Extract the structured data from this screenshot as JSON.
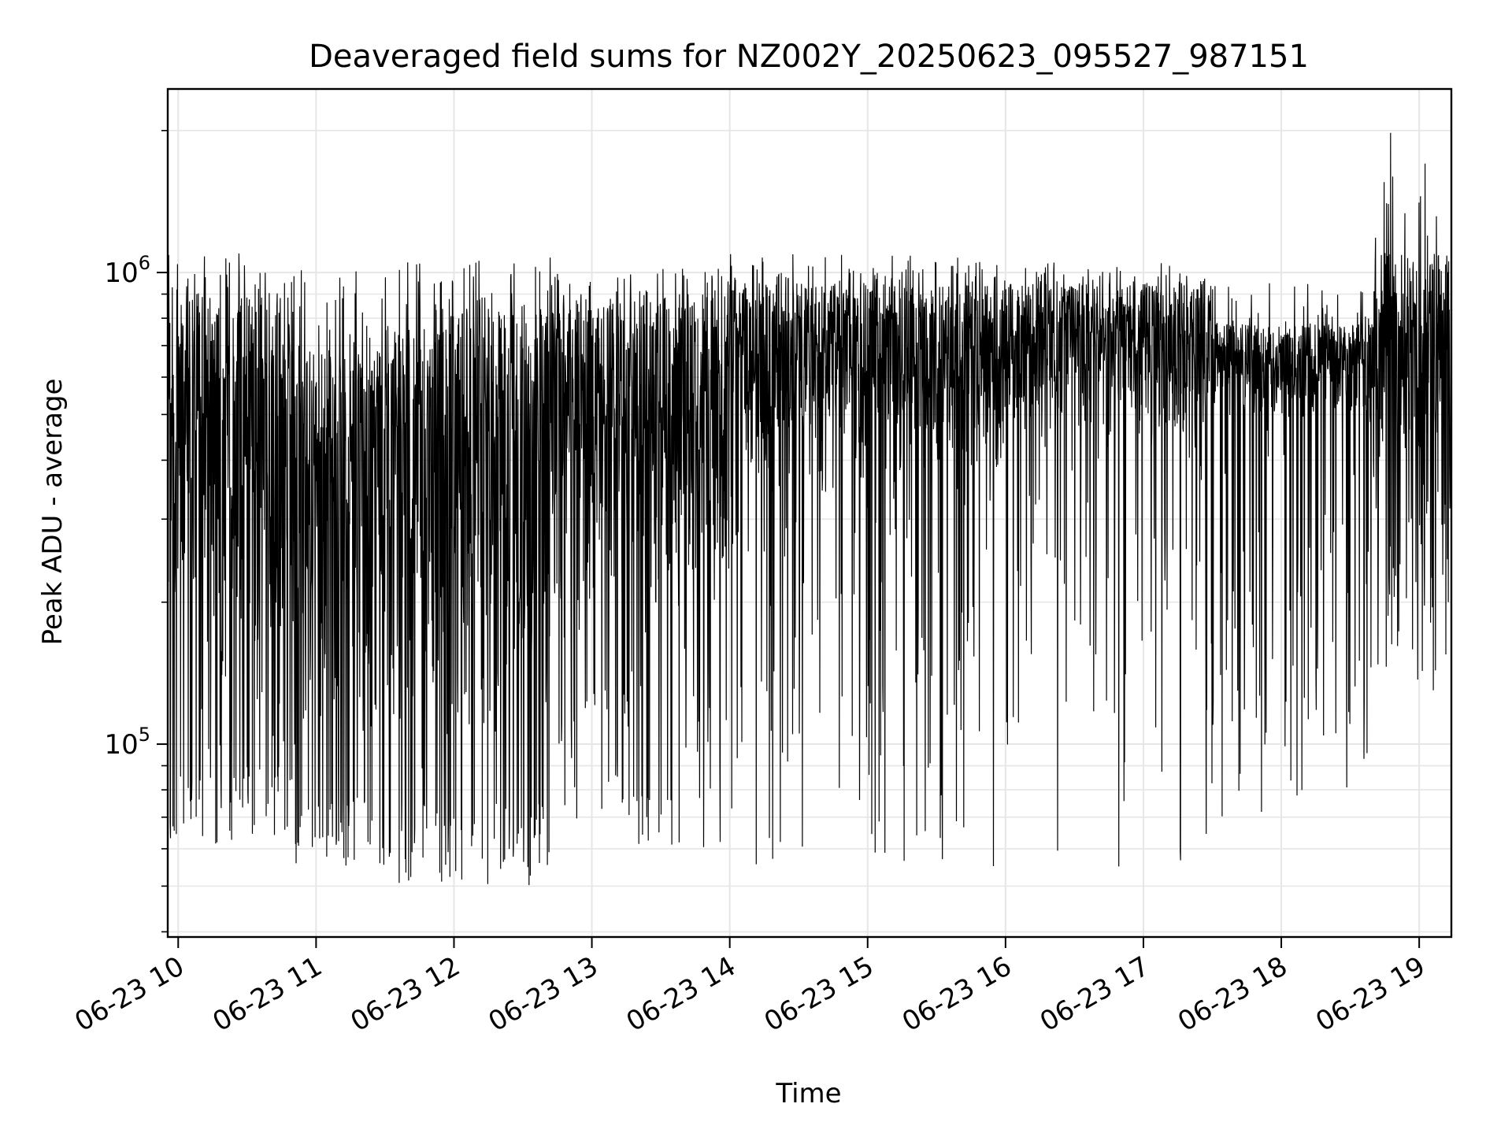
{
  "chart_data": {
    "type": "line",
    "title": "Deaveraged field sums for NZ002Y_20250623_095527_987151",
    "xlabel": "Time",
    "ylabel": "Peak ADU - average",
    "yscale": "log",
    "grid": true,
    "legend": "none",
    "colors": {
      "line": "#000000",
      "grid": "#e6e6e6",
      "axes": "#000000",
      "background": "#ffffff"
    },
    "xlim": [
      "2025-06-23 09:55:27",
      "2025-06-23 19:14:00"
    ],
    "ylim": [
      39000,
      2450000
    ],
    "x_ticks": [
      {
        "value": "2025-06-23 10:00:00",
        "label": "06-23 10"
      },
      {
        "value": "2025-06-23 11:00:00",
        "label": "06-23 11"
      },
      {
        "value": "2025-06-23 12:00:00",
        "label": "06-23 12"
      },
      {
        "value": "2025-06-23 13:00:00",
        "label": "06-23 13"
      },
      {
        "value": "2025-06-23 14:00:00",
        "label": "06-23 14"
      },
      {
        "value": "2025-06-23 15:00:00",
        "label": "06-23 15"
      },
      {
        "value": "2025-06-23 16:00:00",
        "label": "06-23 16"
      },
      {
        "value": "2025-06-23 17:00:00",
        "label": "06-23 17"
      },
      {
        "value": "2025-06-23 18:00:00",
        "label": "06-23 18"
      },
      {
        "value": "2025-06-23 19:00:00",
        "label": "06-23 19"
      }
    ],
    "y_ticks": [
      {
        "value": 100000,
        "base": "10",
        "exp": "5"
      },
      {
        "value": 1000000,
        "base": "10",
        "exp": "6"
      }
    ],
    "y_minor_ticks": [
      40000,
      50000,
      60000,
      70000,
      80000,
      90000,
      200000,
      300000,
      400000,
      500000,
      600000,
      700000,
      800000,
      900000,
      2000000
    ],
    "series_envelope": {
      "description_of_values": "approximate per-segment range of the dense time series (lower trough level, typical lower, typical upper, peak)",
      "segments": [
        {
          "start": "2025-06-23 09:55:27",
          "end": "2025-06-23 10:50:00",
          "min": 60000,
          "low": 90000,
          "high": 900000,
          "max": 1100000
        },
        {
          "start": "2025-06-23 10:50:00",
          "end": "2025-06-23 11:30:00",
          "min": 55000,
          "low": 80000,
          "high": 700000,
          "max": 1050000
        },
        {
          "start": "2025-06-23 11:30:00",
          "end": "2025-06-23 12:45:00",
          "min": 50000,
          "low": 75000,
          "high": 850000,
          "max": 1080000
        },
        {
          "start": "2025-06-23 12:45:00",
          "end": "2025-06-23 14:00:00",
          "min": 60000,
          "low": 150000,
          "high": 900000,
          "max": 1020000
        },
        {
          "start": "2025-06-23 14:00:00",
          "end": "2025-06-23 16:00:00",
          "min": 55000,
          "low": 300000,
          "high": 950000,
          "max": 1100000
        },
        {
          "start": "2025-06-23 16:00:00",
          "end": "2025-06-23 17:30:00",
          "min": 55000,
          "low": 400000,
          "high": 950000,
          "max": 1050000
        },
        {
          "start": "2025-06-23 17:30:00",
          "end": "2025-06-23 18:40:00",
          "min": 70000,
          "low": 450000,
          "high": 780000,
          "max": 950000
        },
        {
          "start": "2025-06-23 18:40:00",
          "end": "2025-06-23 19:14:00",
          "min": 130000,
          "low": 250000,
          "high": 1100000,
          "max": 2000000
        }
      ]
    }
  }
}
